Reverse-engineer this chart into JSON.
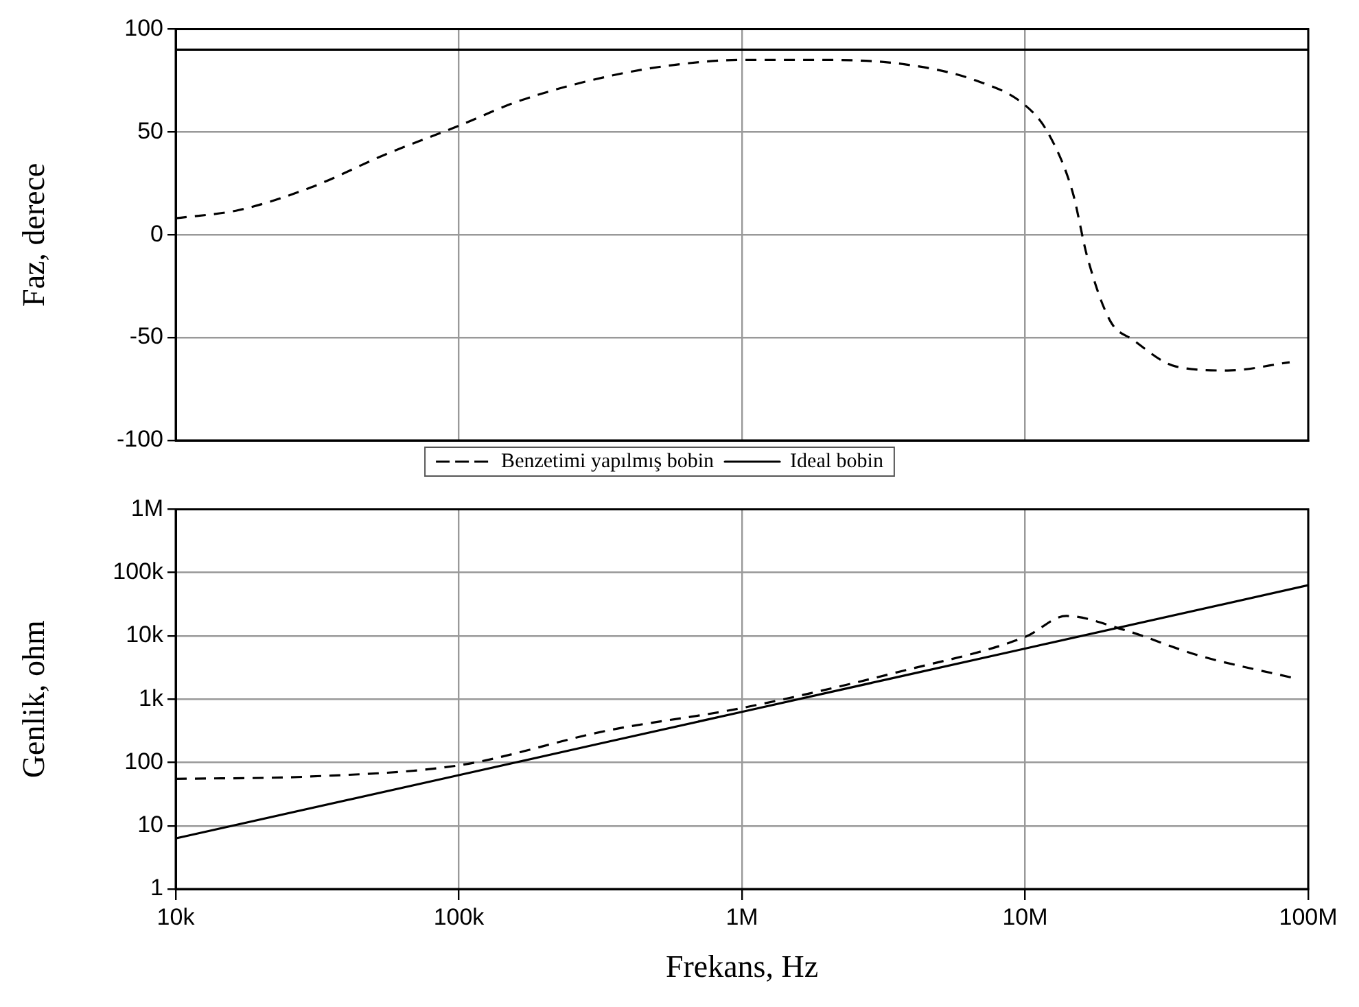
{
  "chart_data": [
    {
      "type": "line",
      "ylabel": "Faz, derece",
      "log": "x",
      "xlim": [
        10000,
        100000000
      ],
      "xticks": [
        {
          "value": 10000,
          "label": null
        },
        {
          "value": 100000,
          "label": null
        },
        {
          "value": 1000000,
          "label": null
        },
        {
          "value": 10000000,
          "label": null
        },
        {
          "value": 100000000,
          "label": null
        }
      ],
      "ylim": [
        -100,
        100
      ],
      "yticks": [
        -100,
        -50,
        0,
        50,
        100
      ],
      "tick_labels": "y",
      "grid": true,
      "legend": "bottom",
      "marker": "none",
      "series": [
        {
          "name": "Benzetimi yapılmış bobin",
          "color": "#000000",
          "line_style": "dashed",
          "x": [
            10000,
            16700,
            30000,
            55000,
            100000,
            163000,
            336000,
            610000,
            1000000,
            1800000,
            3700000,
            6700000,
            10000000,
            12000000,
            14700000,
            16600000,
            20000000,
            24000000,
            34000000,
            52000000,
            86000000
          ],
          "values": [
            8,
            12,
            23,
            39,
            53,
            65,
            77,
            83,
            85,
            85,
            83,
            75,
            63,
            50,
            21,
            -11,
            -42,
            -51,
            -64,
            -66,
            -62
          ]
        },
        {
          "name": "Ideal bobin",
          "color": "#000000",
          "line_style": "solid",
          "x": [
            10000,
            100000000
          ],
          "values": [
            90,
            90
          ]
        }
      ]
    },
    {
      "type": "line",
      "xlabel": "Frekans, Hz",
      "ylabel": "Genlik, ohm",
      "log": "xy",
      "xlim": [
        10000,
        100000000
      ],
      "xticks": [
        {
          "value": 10000,
          "label": "10k"
        },
        {
          "value": 100000,
          "label": "100k"
        },
        {
          "value": 1000000,
          "label": "1M"
        },
        {
          "value": 10000000,
          "label": "10M"
        },
        {
          "value": 100000000,
          "label": "100M"
        }
      ],
      "ylim": [
        1,
        1000000
      ],
      "yticks": [
        1,
        10,
        100,
        {
          "value": 1000,
          "label": "1k"
        },
        {
          "value": 10000,
          "label": "10k"
        },
        {
          "value": 100000,
          "label": "100k"
        },
        {
          "value": 1000000,
          "label": "1M"
        }
      ],
      "grid": true,
      "legend": false,
      "marker": "none",
      "series": [
        {
          "color": "#000000",
          "line_style": "dashed",
          "x": [
            10000,
            30000,
            100000,
            336000,
            1000000,
            3700000,
            10000000,
            14000000,
            22000000,
            41000000,
            89000000
          ],
          "values": [
            55,
            60,
            90,
            320,
            725,
            2800,
            9600,
            20600,
            12700,
            4900,
            2150
          ]
        },
        {
          "color": "#000000",
          "line_style": "solid",
          "x": [
            10000,
            100000,
            1000000,
            10000000,
            100000000
          ],
          "values": [
            6.3,
            63,
            630,
            6300,
            63000
          ]
        }
      ]
    }
  ]
}
